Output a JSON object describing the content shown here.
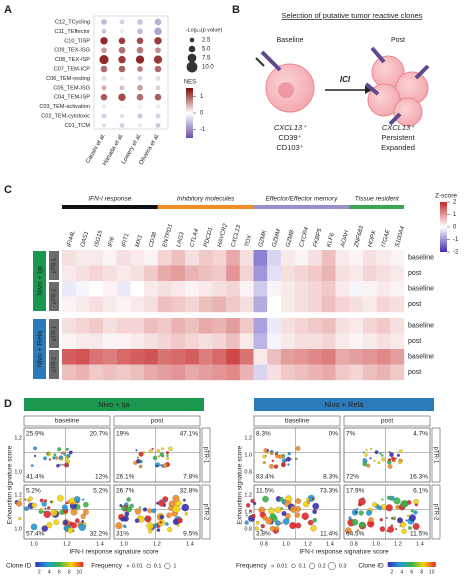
{
  "panel_labels": [
    "A",
    "B",
    "C",
    "D"
  ],
  "chart_data": [
    {
      "type": "dot-matrix",
      "columns": [
        "Caushi et al.",
        "Hanada et al.",
        "Lowery et al.",
        "Oliveira et al."
      ],
      "rows": [
        {
          "label": "C12_TCycling",
          "color": "#888888",
          "nes": [
            -0.6,
            -0.4,
            -0.5,
            -0.7
          ],
          "neg_log10_p": [
            4,
            3,
            4,
            5
          ]
        },
        {
          "label": "C11_TEffector",
          "color": "#4a90c2",
          "nes": [
            -0.5,
            -0.2,
            -0.6,
            -0.8
          ],
          "neg_log10_p": [
            3,
            2,
            4,
            6
          ]
        },
        {
          "label": "C10_TISP",
          "color": "#8b1a1a",
          "nes": [
            1.3,
            1.2,
            1.1,
            1.2
          ],
          "neg_log10_p": [
            6,
            5,
            5,
            6
          ]
        },
        {
          "label": "C09_TEX-ISG",
          "color": "#c2185b",
          "nes": [
            0.6,
            0.9,
            0.8,
            0.7
          ],
          "neg_log10_p": [
            4,
            5,
            5,
            4
          ]
        },
        {
          "label": "C08_TEX-ISP",
          "color": "#6d2b2b",
          "nes": [
            1.3,
            1.2,
            1.3,
            1.2
          ],
          "neg_log10_p": [
            8,
            6,
            7,
            7
          ]
        },
        {
          "label": "C07_TEM-ICP",
          "color": "#2e8b8b",
          "nes": [
            0.9,
            1.0,
            0.8,
            0.9
          ],
          "neg_log10_p": [
            5,
            5,
            4,
            5
          ]
        },
        {
          "label": "C06_TEM-resting",
          "color": "#8e6bbf",
          "nes": [
            -0.3,
            -0.2,
            -0.4,
            -0.3
          ],
          "neg_log10_p": [
            3,
            2,
            3,
            3
          ]
        },
        {
          "label": "C05_TEM-ISG",
          "color": "#7b3fa0",
          "nes": [
            0.5,
            0.4,
            0.6,
            0.3
          ],
          "neg_log10_p": [
            3,
            3,
            4,
            3
          ]
        },
        {
          "label": "C04_TEM-ISP",
          "color": "#2e7d32",
          "nes": [
            1.0,
            1.1,
            0.9,
            1.0
          ],
          "neg_log10_p": [
            5,
            6,
            5,
            5
          ]
        },
        {
          "label": "C03_TEM-activation",
          "color": "#d4b106",
          "nes": [
            -0.2,
            -0.1,
            0.1,
            -0.2
          ],
          "neg_log10_p": [
            2,
            2,
            2,
            2
          ]
        },
        {
          "label": "C02_TEM-cytotoxic",
          "color": "#d1477a",
          "nes": [
            -0.4,
            -0.3,
            -0.5,
            -0.4
          ],
          "neg_log10_p": [
            3,
            2,
            3,
            3
          ]
        },
        {
          "label": "C01_TCM",
          "color": "#4a7fc1",
          "nes": [
            -0.3,
            -0.4,
            -0.2,
            -0.5
          ],
          "neg_log10_p": [
            2,
            3,
            2,
            3
          ]
        }
      ],
      "size_title": "-Log₁₀(p value)",
      "size_ticks": [
        2.5,
        {
          "value": 5,
          "label": "5.0"
        },
        7.5,
        {
          "value": 10,
          "label": "10.0"
        }
      ],
      "color_title": "NES",
      "color_lim": [
        -1.5,
        1.5
      ],
      "color_ticks": [
        1,
        0,
        -1
      ]
    },
    {
      "type": "heatmap",
      "gene_groups": [
        {
          "label": "IFN-I response",
          "color": "#111111",
          "genes": [
            "IFI44L",
            "OAS1",
            "ISG15",
            "IFI6",
            "IFIT1",
            "MX1",
            "CD38"
          ]
        },
        {
          "label": "Inhibitory molecules",
          "color": "#f28c28",
          "genes": [
            "ENTPD1",
            "LAG3",
            "CTLA4",
            "PDCD1",
            "HAVCR2",
            "CXCL13",
            "TOX"
          ]
        },
        {
          "label": "Effector/Effector memory",
          "color": "#9b8fc9",
          "genes": [
            "GZMK",
            "GZMM",
            "GZMB",
            "CXCR4",
            "FKBP5",
            "KLF6",
            "AOAH"
          ]
        },
        {
          "label": "Tissue resident",
          "color": "#3aa655",
          "genes": [
            "ZNF683",
            "HOPX",
            "ITGAE",
            "S100A4"
          ]
        }
      ],
      "cohorts": [
        {
          "label": "Nivo + Ipi",
          "color": "#1a9850",
          "patients": [
            {
              "label": "pTR-1",
              "rows": [
                {
                  "label": "baseline",
                  "values": [
                    0.3,
                    0.2,
                    0.2,
                    0.1,
                    0.3,
                    0.2,
                    0.1,
                    0.4,
                    0.6,
                    0.3,
                    0.5,
                    0.4,
                    0.8,
                    0.3,
                    -1.2,
                    -0.4,
                    0.2,
                    0.1,
                    0.3,
                    0.6,
                    0.2,
                    0.1,
                    0.3,
                    0.2,
                    0.1
                  ]
                },
                {
                  "label": "post",
                  "values": [
                    0.2,
                    0.3,
                    0.4,
                    0.3,
                    0.2,
                    0.3,
                    0.5,
                    0.8,
                    0.9,
                    0.7,
                    0.6,
                    0.5,
                    1.0,
                    0.4,
                    -1.0,
                    -0.3,
                    0.3,
                    0.4,
                    0.5,
                    0.7,
                    0.3,
                    0.2,
                    0.4,
                    0.3,
                    0.2
                  ]
                }
              ]
            },
            {
              "label": "pTR-2",
              "rows": [
                {
                  "label": "baseline",
                  "values": [
                    -0.2,
                    -0.1,
                    0,
                    0.1,
                    -0.2,
                    0,
                    0.2,
                    0.3,
                    0.2,
                    0.1,
                    0.2,
                    0.3,
                    0.4,
                    0.1,
                    -0.5,
                    0.1,
                    0.2,
                    0.3,
                    0.4,
                    0.5,
                    0.2,
                    -0.1,
                    0.1,
                    0.2,
                    0.1
                  ]
                },
                {
                  "label": "post",
                  "values": [
                    0.1,
                    0.2,
                    0.3,
                    0.2,
                    0.1,
                    0.2,
                    0.3,
                    0.6,
                    0.5,
                    0.4,
                    0.6,
                    0.7,
                    0.5,
                    0.3,
                    -0.8,
                    0,
                    0.2,
                    0.3,
                    0.4,
                    0.6,
                    0.4,
                    0.3,
                    0.2,
                    0.4,
                    0.3
                  ]
                }
              ]
            }
          ]
        },
        {
          "label": "Nivo + Rela",
          "color": "#2b7bba",
          "patients": [
            {
              "label": "pTR-1",
              "rows": [
                {
                  "label": "baseline",
                  "values": [
                    0.3,
                    0.4,
                    0.5,
                    0.3,
                    0.4,
                    0.4,
                    0.6,
                    0.5,
                    0.7,
                    0.6,
                    0.8,
                    0.7,
                    0.9,
                    0.5,
                    -0.9,
                    -0.2,
                    0.3,
                    0.4,
                    0.5,
                    0.6,
                    0.3,
                    0.2,
                    0.4,
                    0.5,
                    0.3
                  ]
                },
                {
                  "label": "post",
                  "values": [
                    0.1,
                    0.2,
                    0.2,
                    0.1,
                    0.1,
                    0.2,
                    0.3,
                    0.4,
                    0.5,
                    0.4,
                    0.3,
                    0.4,
                    0.6,
                    0.2,
                    -0.7,
                    -0.1,
                    0.2,
                    0.3,
                    0.3,
                    0.4,
                    0.2,
                    0.1,
                    0.2,
                    0.3,
                    0.2
                  ]
                }
              ]
            },
            {
              "label": "pTR-2",
              "rows": [
                {
                  "label": "baseline",
                  "values": [
                    1.5,
                    1.6,
                    1.3,
                    1.2,
                    1.4,
                    1.5,
                    1.6,
                    1.3,
                    1.4,
                    1.5,
                    1.2,
                    1.4,
                    1.7,
                    1.3,
                    0.2,
                    0.6,
                    0.9,
                    1.0,
                    1.1,
                    1.2,
                    0.8,
                    0.9,
                    1.0,
                    1.1,
                    0.9
                  ]
                },
                {
                  "label": "post",
                  "values": [
                    0.6,
                    0.7,
                    0.5,
                    0.6,
                    0.5,
                    0.6,
                    0.8,
                    0.9,
                    1.0,
                    0.8,
                    0.9,
                    1.0,
                    1.1,
                    0.7,
                    -0.4,
                    0.3,
                    0.5,
                    0.6,
                    0.7,
                    0.8,
                    0.5,
                    0.4,
                    0.6,
                    0.7,
                    0.5
                  ]
                }
              ]
            }
          ]
        }
      ],
      "color_title": "Z-score",
      "color_lim": [
        -2,
        2
      ],
      "color_ticks": [
        2,
        1,
        0,
        -1,
        -2
      ]
    }
  ],
  "diagram": {
    "title": "Selection of putative tumor reactive clones",
    "left_label": "Baseline",
    "right_label": "Post",
    "arrow_label": "ICI",
    "left_markers": [
      "CXCL13⁺",
      "CD39⁺",
      "CD103⁺"
    ],
    "right_markers": [
      "CXCL13⁺",
      "Persistent",
      "Expanded"
    ]
  },
  "quadrant_plots": [
    {
      "title": "Nivo + Ipi",
      "color": "#1a9850",
      "columns": [
        "baseline",
        "post"
      ],
      "rows": [
        "pTR-1",
        "pTR-2"
      ],
      "y_label": "Exhaustion signature score",
      "x_label": "IFN-I response signature score",
      "yticks": [
        "1.2",
        "1.0"
      ],
      "xticks": [
        "1.0",
        "1.2",
        "1.4"
      ],
      "quadrants": [
        [
          [
            "25.9%",
            "20.7%",
            "41.4%",
            "12%"
          ],
          [
            "19%",
            "47.1%",
            "26.1%",
            "7.8%"
          ]
        ],
        [
          [
            "5.2%",
            "5.2%",
            "57.4%",
            "32.2%"
          ],
          [
            "26.7%",
            "32.8%",
            "31%",
            "9.5%"
          ]
        ]
      ],
      "legends": [
        {
          "label": "Clone ID",
          "ticks": [
            "2",
            "4",
            "6",
            "8",
            "10"
          ]
        },
        {
          "label": "Frequency",
          "ticks": [
            "0.01",
            "0.1",
            "1"
          ]
        }
      ]
    },
    {
      "title": "Nivo + Rela",
      "color": "#2b7bba",
      "columns": [
        "baseline",
        "post"
      ],
      "rows": [
        "pTR-1",
        "pTR-2"
      ],
      "y_label": "Exhaustion signature score",
      "x_label": "IFN-I response signature score",
      "yticks": [
        "1.2",
        "1.0",
        "0.8"
      ],
      "xticks": [
        "0.8",
        "1.0",
        "1.2",
        "1.4"
      ],
      "quadrants": [
        [
          [
            "8.3%",
            "0%",
            "83.4%",
            "8.3%"
          ],
          [
            "7%",
            "4.7%",
            "72%",
            "16.3%"
          ]
        ],
        [
          [
            "11.5%",
            "73.3%",
            "3.8%",
            "11.4%"
          ],
          [
            "17.9%",
            "6.1%",
            "64.5%",
            "11.5%"
          ]
        ]
      ],
      "legends": [
        {
          "label": "Frequency",
          "ticks": [
            "0.01",
            "0.1",
            "0.2",
            "0.3"
          ]
        },
        {
          "label": "Clone ID",
          "ticks": [
            "2",
            "4",
            "6",
            "8",
            "10"
          ]
        }
      ]
    }
  ]
}
